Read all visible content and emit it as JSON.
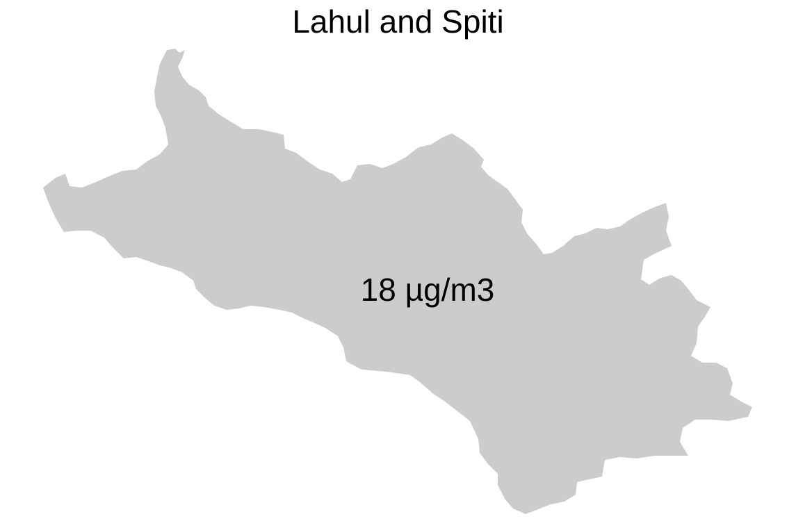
{
  "map": {
    "title": "Lahul and Spiti",
    "region": {
      "name": "Lahul and Spiti",
      "value_label": "18 µg/m3",
      "fill_color": "#cccccc"
    }
  }
}
